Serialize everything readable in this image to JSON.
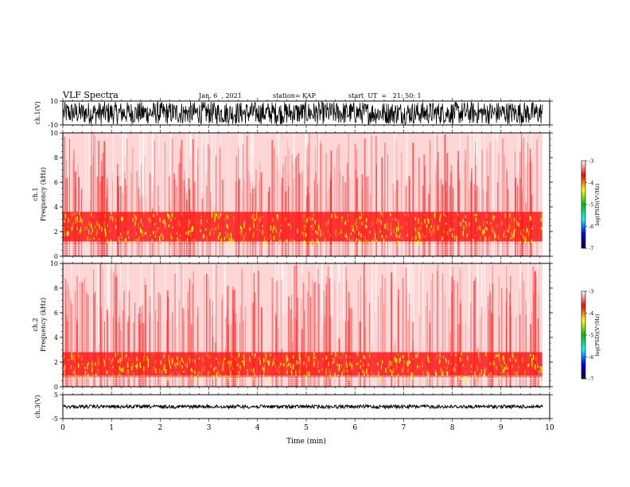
{
  "header": {
    "title": "VLF Spectra",
    "date": "Jan. 6  , 2021",
    "station": "station= KAP",
    "start": "start  UT  =   21: 50: 1"
  },
  "chart_data": [
    {
      "type": "line",
      "panel": "ch1-waveform",
      "ylabel": "ch.1(V)",
      "ylim": [
        -10,
        10
      ],
      "yticks": [
        "10",
        "-10"
      ],
      "xlim": [
        0,
        10
      ]
    },
    {
      "type": "heatmap",
      "panel": "ch1-spectrogram",
      "ylabel": "ch.1\nFrequency  (kHz)",
      "ylim": [
        0,
        10
      ],
      "yticks": [
        "0",
        "2",
        "4",
        "6",
        "8",
        "10"
      ],
      "xlim": [
        0,
        10
      ],
      "colorbar": {
        "label": "log(PSD)(V²/Hz)",
        "ticks": [
          "-3",
          "-4",
          "-5",
          "-6",
          "-7"
        ],
        "range": [
          -7,
          -3
        ]
      }
    },
    {
      "type": "heatmap",
      "panel": "ch2-spectrogram",
      "ylabel": "ch.2\nFrequency  (kHz)",
      "ylim": [
        0,
        10
      ],
      "yticks": [
        "0",
        "2",
        "4",
        "6",
        "8",
        "10"
      ],
      "xlim": [
        0,
        10
      ],
      "colorbar": {
        "label": "log(PSD)(V²/Hz)",
        "ticks": [
          "-3",
          "-4",
          "-5",
          "-6",
          "-7"
        ],
        "range": [
          -7,
          -3
        ]
      }
    },
    {
      "type": "line",
      "panel": "ch3-waveform",
      "ylabel": "ch.3(V)",
      "ylim": [
        -5,
        5
      ],
      "yticks": [
        "5",
        "-5"
      ],
      "xlim": [
        0,
        10
      ],
      "xlabel": "Time  (min)",
      "xticks": [
        "0",
        "1",
        "2",
        "3",
        "4",
        "5",
        "6",
        "7",
        "8",
        "9",
        "10"
      ]
    }
  ],
  "colors": {
    "background": "#ffffff",
    "spectrogram_low": "#ffffff",
    "spectrogram_mid": "#ff2020",
    "spectrogram_high": "#ffff00",
    "colorbar": [
      "#ffffff",
      "#ff0000",
      "#ffff00",
      "#00c000",
      "#00ffff",
      "#0000ff",
      "#000040"
    ]
  }
}
